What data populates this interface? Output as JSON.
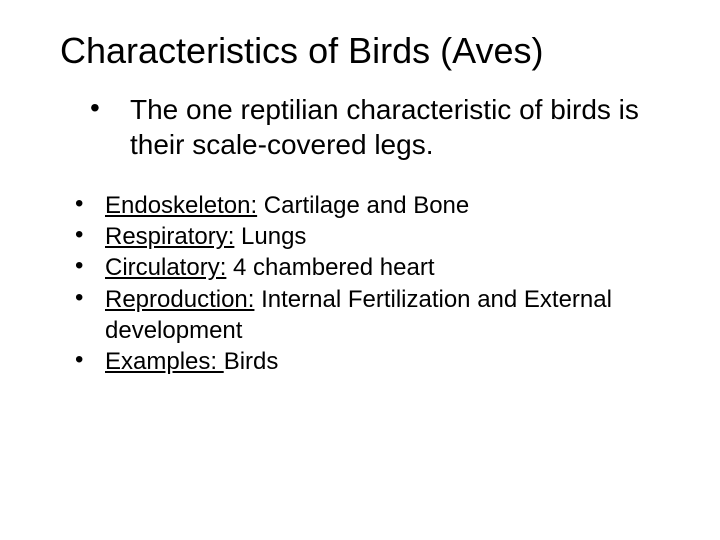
{
  "title": "Characteristics of Birds (Aves)",
  "intro": {
    "bullet": "•",
    "text": "The one reptilian characteristic of birds is their scale-covered legs."
  },
  "items": [
    {
      "bullet": "•",
      "label": "Endoskeleton:",
      "value": " Cartilage and Bone"
    },
    {
      "bullet": "•",
      "label": "Respiratory:",
      "value": " Lungs"
    },
    {
      "bullet": "•",
      "label": "Circulatory:",
      "value": " 4 chambered heart"
    },
    {
      "bullet": "•",
      "label": "Reproduction:",
      "value": " Internal Fertilization and External development"
    },
    {
      "bullet": "•",
      "label": "Examples: ",
      "value": "Birds"
    }
  ],
  "style": {
    "background_color": "#ffffff",
    "text_color": "#000000",
    "title_fontsize": 36,
    "intro_fontsize": 28,
    "body_fontsize": 24,
    "font_family": "Arial"
  }
}
